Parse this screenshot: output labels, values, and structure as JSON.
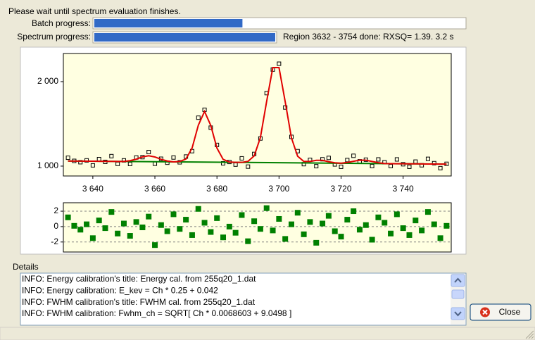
{
  "status": "Please wait until spectrum evaluation finishes.",
  "batch_progress": {
    "label": "Batch progress:",
    "value": 40,
    "lim": [
      0,
      100
    ]
  },
  "spectrum_progress": {
    "label": "Spectrum progress:",
    "value": 100,
    "lim": [
      0,
      100
    ],
    "message": "Region 3632 - 3754 done: RXSQ= 1.39. 3.2 s"
  },
  "chart_data": [
    {
      "type": "scatter",
      "x": [
        3632,
        3634,
        3636,
        3638,
        3640,
        3642,
        3644,
        3646,
        3648,
        3650,
        3652,
        3654,
        3656,
        3658,
        3660,
        3662,
        3664,
        3666,
        3668,
        3670,
        3672,
        3674,
        3676,
        3678,
        3680,
        3682,
        3684,
        3686,
        3688,
        3690,
        3692,
        3694,
        3696,
        3698,
        3700,
        3702,
        3704,
        3706,
        3708,
        3710,
        3712,
        3714,
        3716,
        3718,
        3720,
        3722,
        3724,
        3726,
        3728,
        3730,
        3732,
        3734,
        3736,
        3738,
        3740,
        3742,
        3744,
        3746,
        3748,
        3750,
        3752,
        3754
      ],
      "series": [
        {
          "type": "scatter",
          "color": "#000000",
          "values": [
            1099,
            1062,
            1046,
            1068,
            1009,
            1083,
            1050,
            1118,
            1026,
            1068,
            1025,
            1102,
            1106,
            1166,
            1028,
            1087,
            1040,
            1102,
            1045,
            1113,
            1177,
            1573,
            1667,
            1455,
            1251,
            1033,
            1049,
            1018,
            1092,
            994,
            1144,
            1327,
            1864,
            2143,
            2212,
            1694,
            1346,
            1177,
            1023,
            1074,
            999,
            1081,
            1097,
            1020,
            992,
            1072,
            1122,
            1057,
            1076,
            1000,
            1079,
            1046,
            1000,
            1079,
            1022,
            992,
            1053,
            1010,
            1086,
            1035,
            976,
            1027
          ]
        },
        {
          "type": "line",
          "color": "#008000",
          "x": [
            3632,
            3754
          ],
          "values": [
            1060,
            1024
          ]
        },
        {
          "type": "line",
          "color": "#e00000",
          "values": [
            1060,
            1059,
            1059,
            1058,
            1058,
            1057,
            1056,
            1056,
            1055,
            1055,
            1064,
            1082,
            1109,
            1122,
            1108,
            1080,
            1060,
            1050,
            1055,
            1083,
            1215,
            1484,
            1647,
            1482,
            1213,
            1079,
            1049,
            1044,
            1044,
            1056,
            1121,
            1338,
            1763,
            2166,
            2166,
            1761,
            1335,
            1117,
            1055,
            1055,
            1068,
            1068,
            1052,
            1039,
            1034,
            1043,
            1057,
            1070,
            1069,
            1055,
            1040,
            1030,
            1029,
            1028,
            1028,
            1027,
            1027,
            1026,
            1025,
            1025,
            1024,
            1024
          ]
        }
      ],
      "xlim": [
        3630.5,
        3755.5
      ],
      "xticks": [
        {
          "value": 3640,
          "label": "3 640"
        },
        {
          "value": 3660,
          "label": "3 660"
        },
        {
          "value": 3680,
          "label": "3 680"
        },
        {
          "value": 3700,
          "label": "3 700"
        },
        {
          "value": 3720,
          "label": "3 720"
        },
        {
          "value": 3740,
          "label": "3 740"
        }
      ],
      "ylim": [
        883,
        2333
      ],
      "yticks": [
        {
          "value": 1000,
          "label": "1 000"
        },
        {
          "value": 2000,
          "label": "2 000"
        }
      ]
    },
    {
      "type": "scatter",
      "x": [
        3632,
        3634,
        3636,
        3638,
        3640,
        3642,
        3644,
        3646,
        3648,
        3650,
        3652,
        3654,
        3656,
        3658,
        3660,
        3662,
        3664,
        3666,
        3668,
        3670,
        3672,
        3674,
        3676,
        3678,
        3680,
        3682,
        3684,
        3686,
        3688,
        3690,
        3692,
        3694,
        3696,
        3698,
        3700,
        3702,
        3704,
        3706,
        3708,
        3710,
        3712,
        3714,
        3716,
        3718,
        3720,
        3722,
        3724,
        3726,
        3728,
        3730,
        3732,
        3734,
        3736,
        3738,
        3740,
        3742,
        3744,
        3746,
        3748,
        3750,
        3752,
        3754
      ],
      "series": [
        {
          "type": "scatter",
          "color": "#008000",
          "values": [
            1.2,
            0.1,
            -0.4,
            0.3,
            -1.5,
            0.8,
            -0.2,
            1.9,
            -0.9,
            0.4,
            -1.2,
            0.6,
            -0.1,
            1.3,
            -2.4,
            0.2,
            -0.6,
            1.6,
            -0.3,
            0.9,
            -1.1,
            2.3,
            0.5,
            -0.7,
            1.1,
            -1.4,
            0.0,
            -0.8,
            1.5,
            -1.9,
            0.7,
            -0.3,
            2.4,
            -0.5,
            1.0,
            -1.6,
            0.3,
            1.8,
            -1.0,
            0.6,
            -2.1,
            0.4,
            1.4,
            -0.6,
            -1.3,
            0.9,
            2.0,
            -0.4,
            0.2,
            -1.7,
            1.2,
            0.5,
            -0.9,
            1.6,
            -0.2,
            -1.1,
            0.8,
            -0.5,
            1.9,
            0.3,
            -1.5,
            0.1
          ]
        }
      ],
      "xlim": [
        3630.5,
        3755.5
      ],
      "ylim": [
        -3.3,
        3.1
      ],
      "yticks": [
        2,
        0,
        -2
      ],
      "grid": true
    }
  ],
  "details": {
    "label": "Details",
    "lines": [
      "INFO: Energy calibration's title: Energy cal. from 255q20_1.dat",
      "INFO: Energy calibration: E_kev = Ch * 0.25 + 0.042",
      "INFO: FWHM calibration's title: FWHM cal. from 255q20_1.dat",
      "INFO: FWHM calibration: Fwhm_ch = SQRT[ Ch * 0.0068603 + 9.0498 ]"
    ]
  },
  "close_button": "Close"
}
